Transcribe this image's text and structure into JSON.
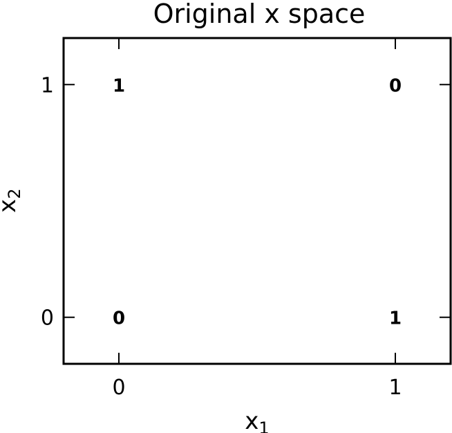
{
  "chart_data": {
    "type": "scatter",
    "title": "Original x space",
    "xlabel": {
      "base": "x",
      "sub": "1"
    },
    "ylabel": {
      "base": "x",
      "sub": "2"
    },
    "xlim": [
      -0.2,
      1.2
    ],
    "ylim": [
      -0.2,
      1.2
    ],
    "xticks": [
      0,
      1
    ],
    "yticks": [
      0,
      1
    ],
    "xtick_labels": [
      "0",
      "1"
    ],
    "ytick_labels": [
      "0",
      "1"
    ],
    "grid": false,
    "points": [
      {
        "x": 0,
        "y": 0,
        "label": "0"
      },
      {
        "x": 0,
        "y": 1,
        "label": "1"
      },
      {
        "x": 1,
        "y": 0,
        "label": "1"
      },
      {
        "x": 1,
        "y": 1,
        "label": "0"
      }
    ]
  }
}
